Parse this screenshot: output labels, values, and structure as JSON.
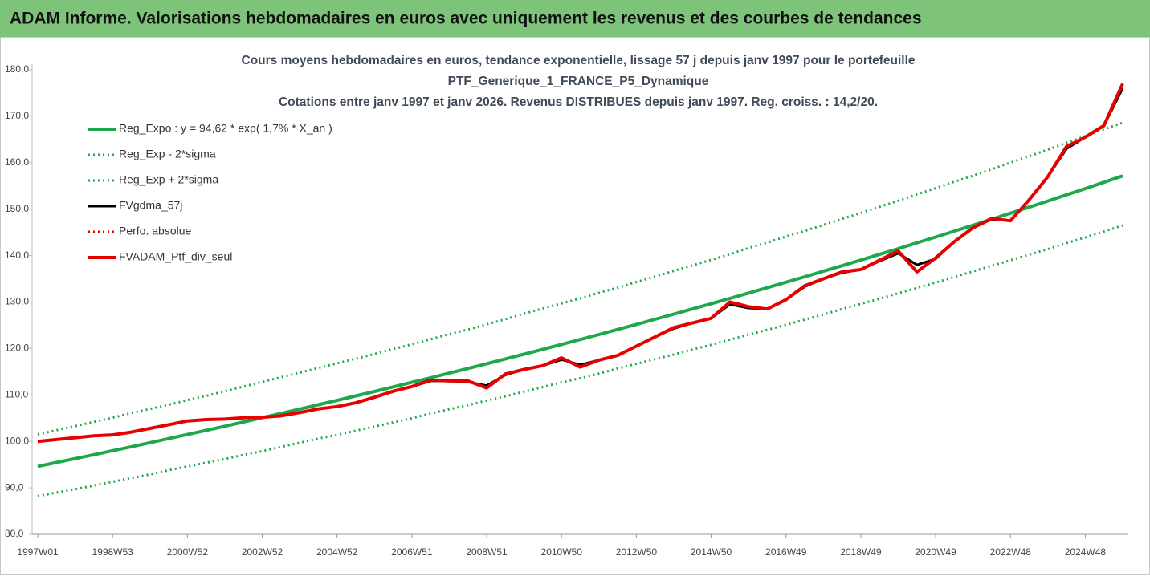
{
  "chart_data": {
    "type": "line",
    "title": "ADAM Informe. Valorisations hebdomadaires en euros avec uniquement les revenus et des courbes de tendances",
    "subtitle": [
      "Cours moyens hebdomadaires  en euros, tendance exponentielle, lissage 57 j depuis janv 1997 pour le portefeuille",
      "PTF_Generique_1_FRANCE_P5_Dynamique",
      "Cotations  entre janv 1997 et janv 2026. Revenus DISTRIBUES depuis janv 1997. Reg. croiss. : 14,2/20."
    ],
    "categories": [
      "1997W01",
      null,
      null,
      null,
      "1998W53",
      null,
      null,
      null,
      "2000W52",
      null,
      null,
      null,
      "2002W52",
      null,
      null,
      null,
      "2004W52",
      null,
      null,
      null,
      "2006W51",
      null,
      null,
      null,
      "2008W51",
      null,
      null,
      null,
      "2010W50",
      null,
      null,
      null,
      "2012W50",
      null,
      null,
      null,
      "2014W50",
      null,
      null,
      null,
      "2016W49",
      null,
      null,
      null,
      "2018W49",
      null,
      null,
      null,
      "2020W49",
      null,
      null,
      null,
      "2022W48",
      null,
      null,
      null,
      "2024W48",
      null,
      null
    ],
    "ylim": [
      80,
      180
    ],
    "yticks": [
      {
        "value": 80,
        "label": "80,0"
      },
      {
        "value": 90,
        "label": "90,0"
      },
      {
        "value": 100,
        "label": "100,0"
      },
      {
        "value": 110,
        "label": "110,0"
      },
      {
        "value": 120,
        "label": "120,0"
      },
      {
        "value": 130,
        "label": "130,0"
      },
      {
        "value": 140,
        "label": "140,0"
      },
      {
        "value": 150,
        "label": "150,0"
      },
      {
        "value": 160,
        "label": "160,0"
      },
      {
        "value": 170,
        "label": "170,0"
      },
      {
        "value": 180,
        "label": "180,0"
      }
    ],
    "grid": false,
    "legend": "top-left",
    "series": [
      {
        "name": "Reg_Expo : y = 94,62 * exp( 1,7% *  X_an )",
        "color": "#1ea84c",
        "style": "solid",
        "width": 4,
        "values": [
          94.62,
          95.45,
          96.29,
          97.14,
          97.99,
          98.85,
          99.72,
          100.6,
          101.48,
          102.37,
          103.27,
          104.18,
          105.09,
          106.02,
          106.95,
          107.89,
          108.83,
          109.79,
          110.75,
          111.73,
          112.71,
          113.7,
          114.7,
          115.7,
          116.72,
          117.75,
          118.78,
          119.83,
          120.88,
          121.94,
          123.01,
          124.09,
          125.18,
          126.28,
          127.39,
          128.51,
          129.64,
          130.78,
          131.93,
          133.09,
          134.26,
          135.44,
          136.63,
          137.83,
          139.04,
          140.26,
          141.49,
          142.74,
          143.99,
          145.26,
          146.53,
          147.82,
          149.12,
          150.43,
          151.75,
          153.09,
          154.43,
          155.79,
          157.16
        ]
      },
      {
        "name": "Reg_Exp - 2*sigma",
        "color": "#1ea84c",
        "style": "dotted",
        "width": 3,
        "values": [
          88.2,
          89.0,
          89.7,
          90.5,
          91.3,
          92.1,
          92.9,
          93.8,
          94.6,
          95.4,
          96.2,
          97.1,
          97.9,
          98.8,
          99.7,
          100.6,
          101.4,
          102.3,
          103.2,
          104.1,
          105.0,
          106.0,
          106.9,
          107.8,
          108.8,
          109.7,
          110.7,
          111.7,
          112.7,
          113.6,
          114.6,
          115.7,
          116.7,
          117.7,
          118.7,
          119.8,
          120.8,
          121.9,
          123.0,
          124.0,
          125.1,
          126.2,
          127.3,
          128.5,
          129.6,
          130.7,
          131.9,
          133.0,
          134.2,
          135.4,
          136.6,
          137.8,
          139.0,
          140.2,
          141.4,
          142.7,
          143.9,
          145.2,
          146.5
        ]
      },
      {
        "name": "Reg_Exp + 2*sigma",
        "color": "#1ea84c",
        "style": "dotted",
        "width": 3,
        "values": [
          101.5,
          102.4,
          103.3,
          104.2,
          105.1,
          106.1,
          107.0,
          107.9,
          108.9,
          109.8,
          110.8,
          111.8,
          112.8,
          113.8,
          114.8,
          115.8,
          116.8,
          117.8,
          118.8,
          119.9,
          120.9,
          122.0,
          123.1,
          124.1,
          125.2,
          126.3,
          127.5,
          128.6,
          129.7,
          130.8,
          132.0,
          133.1,
          134.3,
          135.5,
          136.7,
          137.9,
          139.1,
          140.3,
          141.6,
          142.8,
          144.1,
          145.3,
          146.6,
          147.9,
          149.2,
          150.5,
          151.8,
          153.2,
          154.5,
          155.9,
          157.2,
          158.6,
          160.0,
          161.4,
          162.8,
          164.3,
          165.7,
          167.2,
          168.6
        ]
      },
      {
        "name": "FVgdma_57j",
        "color": "#000000",
        "style": "solid",
        "width": 3,
        "values": [
          100.0,
          100.4,
          100.8,
          101.2,
          101.4,
          102.0,
          102.8,
          103.6,
          104.4,
          104.7,
          104.8,
          105.1,
          105.2,
          105.5,
          106.2,
          107.0,
          107.5,
          108.3,
          109.5,
          110.8,
          111.8,
          113.0,
          113.0,
          112.8,
          112.0,
          114.3,
          115.5,
          116.3,
          117.6,
          116.5,
          117.5,
          118.5,
          120.5,
          122.5,
          124.3,
          125.5,
          126.5,
          129.5,
          128.7,
          128.5,
          130.5,
          133.3,
          135.0,
          136.3,
          137.0,
          138.8,
          140.5,
          138.0,
          139.3,
          143.0,
          146.0,
          147.8,
          147.5,
          152.0,
          157.0,
          163.0,
          165.5,
          168.0,
          176.0
        ]
      },
      {
        "name": "Perfo. absolue",
        "color": "#e60000",
        "style": "dotted",
        "width": 3,
        "values": [
          100.0,
          100.4,
          100.8,
          101.2,
          101.4,
          102.0,
          102.8,
          103.6,
          104.4,
          104.7,
          104.8,
          105.1,
          105.2,
          105.5,
          106.2,
          107.0,
          107.5,
          108.3,
          109.5,
          110.8,
          111.8,
          113.2,
          113.0,
          113.0,
          111.5,
          114.5,
          115.5,
          116.3,
          118.0,
          116.0,
          117.5,
          118.5,
          120.5,
          122.5,
          124.5,
          125.5,
          126.5,
          130.0,
          129.0,
          128.5,
          130.5,
          133.5,
          135.0,
          136.5,
          137.0,
          139.0,
          141.0,
          136.5,
          139.5,
          143.0,
          146.0,
          148.0,
          147.5,
          152.0,
          157.0,
          163.5,
          165.5,
          168.0,
          177.0
        ]
      },
      {
        "name": "FVADAM_Ptf_div_seul",
        "color": "#e60000",
        "style": "solid",
        "width": 4,
        "values": [
          100.0,
          100.4,
          100.8,
          101.2,
          101.4,
          102.0,
          102.8,
          103.6,
          104.4,
          104.7,
          104.8,
          105.1,
          105.2,
          105.5,
          106.2,
          107.0,
          107.5,
          108.3,
          109.5,
          110.8,
          111.8,
          113.2,
          113.0,
          113.0,
          111.5,
          114.5,
          115.5,
          116.3,
          118.0,
          116.0,
          117.5,
          118.5,
          120.5,
          122.5,
          124.5,
          125.5,
          126.5,
          130.0,
          129.0,
          128.5,
          130.5,
          133.5,
          135.0,
          136.5,
          137.0,
          139.0,
          141.0,
          136.5,
          139.5,
          143.0,
          146.0,
          148.0,
          147.5,
          152.0,
          157.0,
          163.5,
          165.5,
          168.0,
          177.0
        ]
      }
    ]
  }
}
